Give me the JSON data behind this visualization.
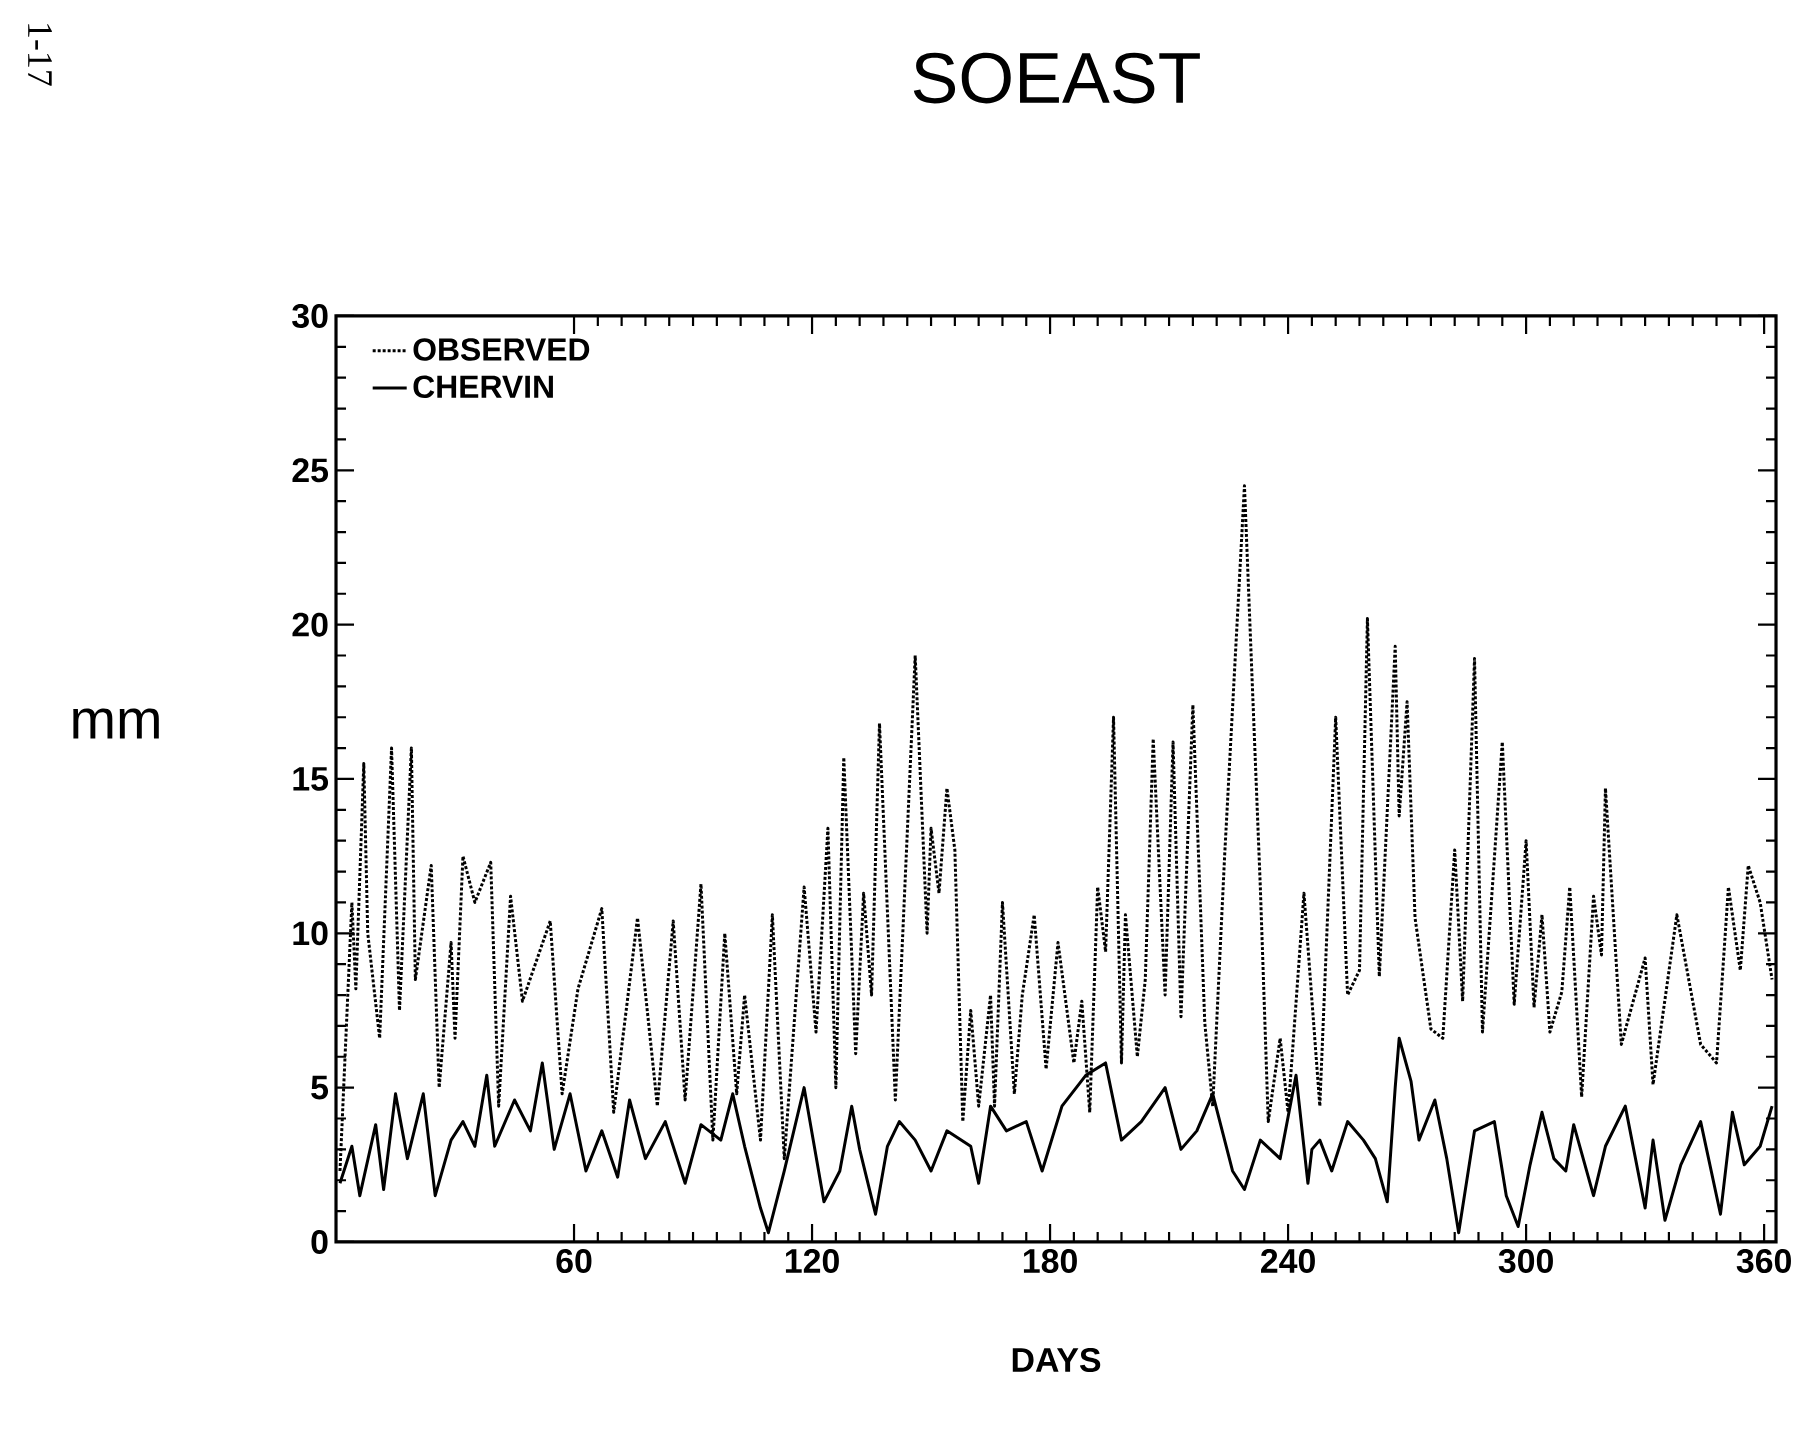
{
  "chart_data": {
    "type": "line",
    "title": "SOEAST",
    "xlabel": "DAYS",
    "ylabel": "mm",
    "annotations": [
      "1-17"
    ],
    "xlim": [
      0,
      363
    ],
    "ylim": [
      0,
      30
    ],
    "xticks": [
      60,
      120,
      180,
      240,
      300,
      360
    ],
    "yticks": [
      0,
      5,
      10,
      15,
      20,
      25,
      30
    ],
    "legend": "top left",
    "series": [
      {
        "name": "OBSERVED",
        "color": "#000000",
        "line_style": "dotted",
        "x": [
          1,
          4,
          5,
          7,
          8,
          11,
          14,
          16,
          19,
          20,
          24,
          26,
          29,
          30,
          32,
          35,
          39,
          41,
          44,
          47,
          54,
          57,
          61,
          67,
          70,
          76,
          81,
          85,
          88,
          92,
          95,
          98,
          101,
          103,
          107,
          110,
          113,
          118,
          121,
          124,
          126,
          128,
          131,
          133,
          135,
          137,
          141,
          146,
          149,
          150,
          152,
          154,
          156,
          158,
          160,
          162,
          165,
          166,
          168,
          171,
          173,
          176,
          179,
          182,
          186,
          188,
          190,
          192,
          194,
          196,
          198,
          199,
          202,
          204,
          206,
          209,
          211,
          213,
          216,
          219,
          221,
          224,
          229,
          233,
          235,
          238,
          240,
          244,
          248,
          252,
          255,
          258,
          260,
          263,
          267,
          268,
          270,
          272,
          276,
          279,
          282,
          284,
          287,
          289,
          294,
          297,
          300,
          302,
          304,
          306,
          309,
          311,
          314,
          317,
          319,
          320,
          324,
          330,
          332,
          338,
          344,
          348,
          351,
          354,
          356,
          359,
          362
        ],
        "values": [
          2.3,
          11,
          8.2,
          15.5,
          10,
          6.6,
          16,
          7.5,
          16,
          8.5,
          12.2,
          5,
          9.7,
          6.6,
          12.5,
          11,
          12.3,
          4.4,
          11.2,
          7.8,
          10.4,
          4.8,
          8.2,
          10.8,
          4.2,
          10.5,
          4.4,
          10.4,
          4.6,
          11.6,
          3.3,
          10,
          4.8,
          8,
          3.3,
          10.6,
          2.7,
          11.5,
          6.8,
          13.4,
          5,
          15.7,
          6.1,
          11.3,
          8,
          16.8,
          4.6,
          19,
          10,
          13.4,
          11.3,
          14.7,
          12.7,
          3.9,
          7.5,
          4.4,
          8,
          4.4,
          11,
          4.8,
          8,
          10.6,
          5.6,
          9.7,
          5.8,
          7.8,
          4.2,
          11.5,
          9.4,
          17,
          5.8,
          10.6,
          6,
          8.5,
          16.3,
          8,
          16.2,
          7.3,
          17.4,
          7.1,
          4.4,
          12.5,
          24.5,
          11.5,
          3.9,
          6.6,
          4.2,
          11.3,
          4.4,
          17,
          8,
          8.8,
          20.2,
          8.6,
          19.3,
          13.8,
          17.5,
          10.5,
          6.9,
          6.6,
          12.7,
          7.8,
          18.9,
          6.8,
          16.2,
          7.7,
          13,
          7.6,
          10.6,
          6.8,
          8.1,
          11.5,
          4.7,
          11.2,
          9.3,
          14.7,
          6.4,
          9.2,
          5.1,
          10.6,
          6.4,
          5.8,
          11.5,
          8.8,
          12.2,
          11,
          8.5
        ]
      },
      {
        "name": "CHERVIN",
        "color": "#000000",
        "line_style": "solid",
        "x": [
          1,
          4,
          6,
          10,
          12,
          15,
          18,
          22,
          25,
          29,
          32,
          35,
          38,
          40,
          45,
          49,
          52,
          55,
          59,
          63,
          67,
          71,
          74,
          78,
          83,
          88,
          92,
          97,
          100,
          103,
          107,
          109,
          113,
          118,
          123,
          127,
          130,
          132,
          136,
          139,
          142,
          146,
          150,
          154,
          160,
          162,
          165,
          169,
          174,
          178,
          183,
          189,
          194,
          198,
          203,
          209,
          213,
          217,
          221,
          226,
          229,
          233,
          238,
          242,
          245,
          246,
          248,
          251,
          255,
          259,
          262,
          265,
          267,
          268,
          271,
          273,
          277,
          280,
          283,
          287,
          292,
          295,
          298,
          301,
          304,
          307,
          310,
          312,
          317,
          320,
          325,
          330,
          332,
          335,
          339,
          344,
          349,
          352,
          355,
          359,
          362
        ],
        "values": [
          1.9,
          3.1,
          1.5,
          3.8,
          1.7,
          4.8,
          2.7,
          4.8,
          1.5,
          3.3,
          3.9,
          3.1,
          5.4,
          3.1,
          4.6,
          3.6,
          5.8,
          3,
          4.8,
          2.3,
          3.6,
          2.1,
          4.6,
          2.7,
          3.9,
          1.9,
          3.8,
          3.3,
          4.8,
          3.1,
          1.1,
          0.3,
          2.3,
          5,
          1.3,
          2.3,
          4.4,
          3,
          0.9,
          3.1,
          3.9,
          3.3,
          2.3,
          3.6,
          3.1,
          1.9,
          4.4,
          3.6,
          3.9,
          2.3,
          4.4,
          5.4,
          5.8,
          3.3,
          3.9,
          5,
          3,
          3.6,
          4.8,
          2.3,
          1.7,
          3.3,
          2.7,
          5.4,
          1.9,
          3,
          3.3,
          2.3,
          3.9,
          3.3,
          2.7,
          1.3,
          5,
          6.6,
          5.2,
          3.3,
          4.6,
          2.7,
          0.3,
          3.6,
          3.9,
          1.5,
          0.5,
          2.5,
          4.2,
          2.7,
          2.3,
          3.8,
          1.5,
          3.1,
          4.4,
          1.1,
          3.3,
          0.7,
          2.5,
          3.9,
          0.9,
          4.2,
          2.5,
          3.1,
          4.4
        ]
      }
    ]
  }
}
